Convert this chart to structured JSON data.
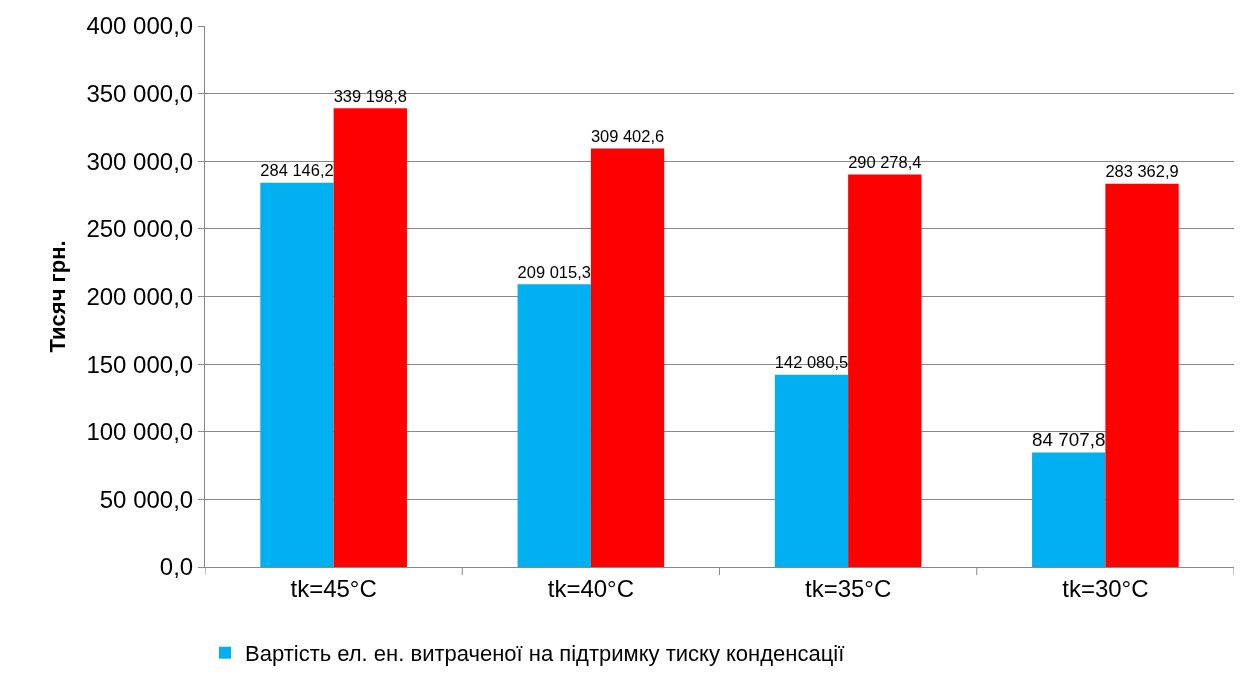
{
  "chart_data": {
    "type": "bar",
    "ylabel": "Тисяч грн.",
    "categories": [
      "tk=45°C",
      "tk=40°C",
      "tk=35°C",
      "tk=30°C"
    ],
    "series": [
      {
        "name": "Вартість ел. ен. витраченої на підтримку тиску конденсації",
        "color": "#00b0f0",
        "values": [
          284146.2,
          209015.3,
          142080.5,
          84707.8
        ],
        "value_labels": [
          "284 146,2",
          "209 015,3",
          "142 080,5",
          "84 707,8"
        ]
      },
      {
        "color": "#ff0000",
        "values": [
          339198.8,
          309402.6,
          290278.4,
          283362.9
        ],
        "value_labels": [
          "339 198,8",
          "309 402,6",
          "290 278,4",
          "283 362,9"
        ]
      }
    ],
    "ylim": [
      0,
      400000
    ],
    "yticks": [
      {
        "value": 0,
        "label": "0,0"
      },
      {
        "value": 50000,
        "label": "50 000,0"
      },
      {
        "value": 100000,
        "label": "100 000,0"
      },
      {
        "value": 150000,
        "label": "150 000,0"
      },
      {
        "value": 200000,
        "label": "200 000,0"
      },
      {
        "value": 250000,
        "label": "250 000,0"
      },
      {
        "value": 300000,
        "label": "300 000,0"
      },
      {
        "value": 350000,
        "label": "350 000,0"
      },
      {
        "value": 400000,
        "label": "400 000,0"
      }
    ],
    "grid": "y",
    "legend": "bottom"
  }
}
